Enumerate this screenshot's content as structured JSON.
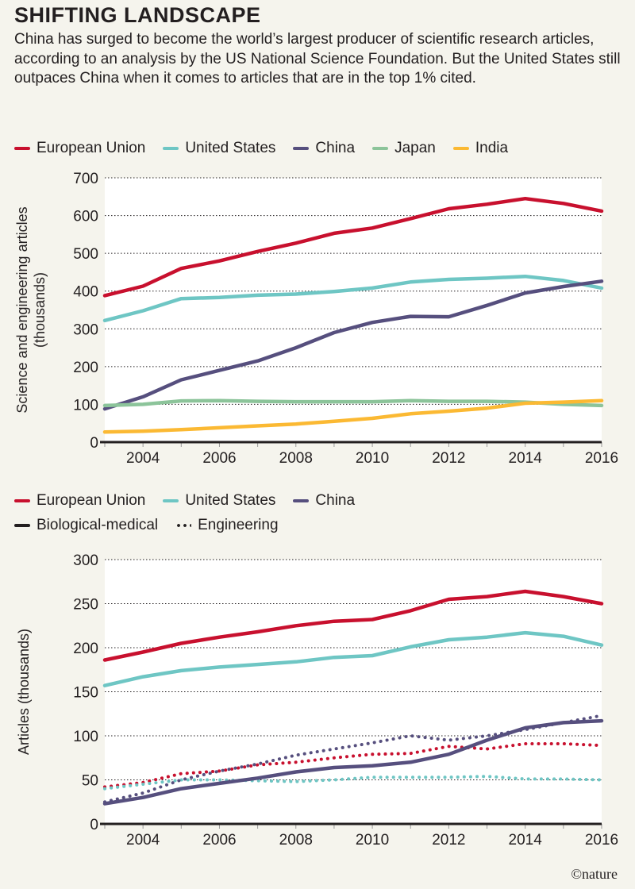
{
  "title": "SHIFTING LANDSCAPE",
  "subtitle": "China has surged to become the world’s largest producer of scientific research articles, according to an analysis by the US National Science Foundation. But the United States still outpaces China when it comes to articles that are in the top 1% cited.",
  "credit": "©nature",
  "colors": {
    "eu": "#c8102e",
    "us": "#6ec6c4",
    "china": "#564f7e",
    "japan": "#8cc49a",
    "india": "#fbb933",
    "background": "#f5f4ed"
  },
  "legend1": [
    "European Union",
    "United States",
    "China",
    "Japan",
    "India"
  ],
  "legend2": [
    "European Union",
    "United States",
    "China"
  ],
  "legend2_styles": [
    "Biological-medical",
    "Engineering"
  ],
  "chart_data": [
    {
      "type": "line",
      "ylabel": "Science and engineering articles (thousands)",
      "ylabel_lines": [
        "Science and engineering articles",
        "(thousands)"
      ],
      "xlim": [
        2003,
        2016
      ],
      "ylim": [
        0,
        700
      ],
      "yticks": [
        0,
        100,
        200,
        300,
        400,
        500,
        600,
        700
      ],
      "xticks": [
        2004,
        2006,
        2008,
        2010,
        2012,
        2014,
        2016
      ],
      "grid": true,
      "legend": "top",
      "x": [
        2003,
        2004,
        2005,
        2006,
        2007,
        2008,
        2009,
        2010,
        2011,
        2012,
        2013,
        2014,
        2015,
        2016
      ],
      "series": [
        {
          "name": "European Union",
          "color": "#c8102e",
          "values": [
            388,
            413,
            460,
            480,
            505,
            527,
            553,
            567,
            592,
            618,
            630,
            645,
            632,
            612
          ]
        },
        {
          "name": "United States",
          "color": "#6ec6c4",
          "values": [
            322,
            348,
            380,
            383,
            389,
            392,
            399,
            408,
            424,
            431,
            434,
            439,
            428,
            408
          ]
        },
        {
          "name": "China",
          "color": "#564f7e",
          "values": [
            88,
            120,
            165,
            190,
            215,
            250,
            290,
            317,
            333,
            332,
            362,
            395,
            412,
            426
          ]
        },
        {
          "name": "Japan",
          "color": "#8cc49a",
          "values": [
            97,
            100,
            109,
            110,
            108,
            107,
            107,
            107,
            110,
            108,
            108,
            106,
            100,
            97
          ]
        },
        {
          "name": "India",
          "color": "#fbb933",
          "values": [
            27,
            29,
            33,
            38,
            43,
            48,
            55,
            63,
            75,
            82,
            90,
            103,
            106,
            110
          ]
        }
      ]
    },
    {
      "type": "line",
      "ylabel": "Articles (thousands)",
      "ylabel_lines": [
        "Articles (thousands)"
      ],
      "xlim": [
        2003,
        2016
      ],
      "ylim": [
        0,
        300
      ],
      "yticks": [
        0,
        50,
        100,
        150,
        200,
        250,
        300
      ],
      "xticks": [
        2004,
        2006,
        2008,
        2010,
        2012,
        2014,
        2016
      ],
      "grid": true,
      "legend": "top",
      "x": [
        2003,
        2004,
        2005,
        2006,
        2007,
        2008,
        2009,
        2010,
        2011,
        2012,
        2013,
        2014,
        2015,
        2016
      ],
      "series": [
        {
          "name": "European Union — Biological-medical",
          "color": "#c8102e",
          "style": "solid",
          "values": [
            186,
            195,
            205,
            212,
            218,
            225,
            230,
            232,
            242,
            255,
            258,
            264,
            258,
            250
          ]
        },
        {
          "name": "United States — Biological-medical",
          "color": "#6ec6c4",
          "style": "solid",
          "values": [
            157,
            167,
            174,
            178,
            181,
            184,
            189,
            191,
            201,
            209,
            212,
            217,
            213,
            203
          ]
        },
        {
          "name": "China — Biological-medical",
          "color": "#564f7e",
          "style": "solid",
          "values": [
            23,
            30,
            40,
            46,
            52,
            59,
            64,
            66,
            70,
            79,
            95,
            109,
            115,
            117
          ]
        },
        {
          "name": "European Union — Engineering",
          "color": "#c8102e",
          "style": "dotted",
          "values": [
            42,
            47,
            57,
            60,
            67,
            70,
            75,
            79,
            80,
            88,
            85,
            91,
            91,
            89
          ]
        },
        {
          "name": "United States — Engineering",
          "color": "#6ec6c4",
          "style": "dotted",
          "values": [
            40,
            45,
            50,
            50,
            49,
            48,
            50,
            53,
            53,
            53,
            54,
            51,
            51,
            50
          ]
        },
        {
          "name": "China — Engineering",
          "color": "#564f7e",
          "style": "dotted",
          "values": [
            25,
            35,
            50,
            60,
            68,
            78,
            85,
            92,
            100,
            95,
            100,
            107,
            115,
            123
          ]
        }
      ]
    }
  ]
}
